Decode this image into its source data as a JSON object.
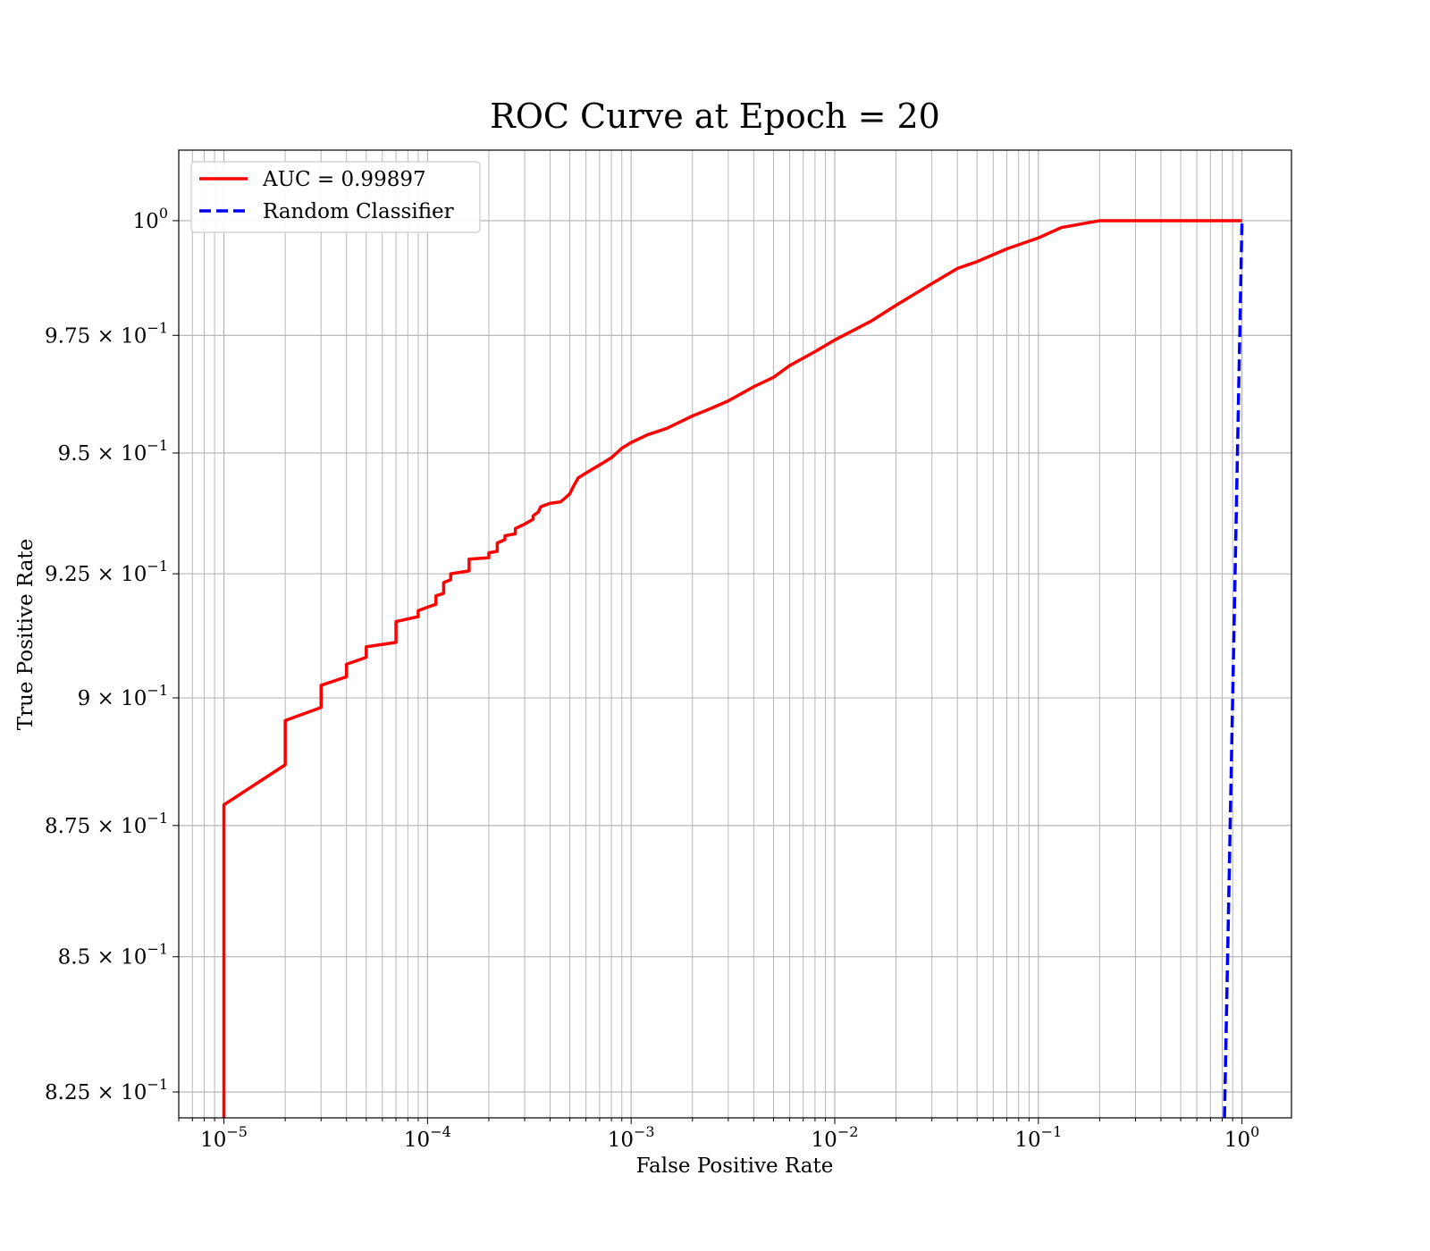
{
  "chart_data": {
    "type": "line",
    "title": "ROC Curve at Epoch = 20",
    "xlabel": "False Positive Rate",
    "ylabel": "True Positive Rate",
    "xscale": "log",
    "yscale": "log",
    "xlim": [
      6e-06,
      1.75
    ],
    "ylim": [
      0.8203,
      1.0157
    ],
    "grid": true,
    "grid_minor": true,
    "legend_position": "upper-left",
    "x_ticks": [
      {
        "value": 1e-05,
        "mant": "10",
        "exp": "−5"
      },
      {
        "value": 0.0001,
        "mant": "10",
        "exp": "−4"
      },
      {
        "value": 0.001,
        "mant": "10",
        "exp": "−3"
      },
      {
        "value": 0.01,
        "mant": "10",
        "exp": "−2"
      },
      {
        "value": 0.1,
        "mant": "10",
        "exp": "−1"
      },
      {
        "value": 1,
        "mant": "10",
        "exp": "0"
      }
    ],
    "y_ticks": [
      {
        "value": 1.0,
        "mant": "10",
        "exp": "0"
      },
      {
        "value": 0.975,
        "mant": "9.75 × 10",
        "exp": "−1"
      },
      {
        "value": 0.95,
        "mant": "9.5 × 10",
        "exp": "−1"
      },
      {
        "value": 0.925,
        "mant": "9.25 × 10",
        "exp": "−1"
      },
      {
        "value": 0.9,
        "mant": "9 × 10",
        "exp": "−1"
      },
      {
        "value": 0.875,
        "mant": "8.75 × 10",
        "exp": "−1"
      },
      {
        "value": 0.85,
        "mant": "8.5 × 10",
        "exp": "−1"
      },
      {
        "value": 0.825,
        "mant": "8.25 × 10",
        "exp": "−1"
      }
    ],
    "series": [
      {
        "name": "AUC = 0.99897",
        "color": "#ff0000",
        "style": "solid",
        "points": [
          [
            1e-05,
            0.82
          ],
          [
            1e-05,
            0.828
          ],
          [
            1e-05,
            0.879
          ],
          [
            2e-05,
            0.8868
          ],
          [
            2e-05,
            0.8955
          ],
          [
            3e-05,
            0.8981
          ],
          [
            3e-05,
            0.9025
          ],
          [
            4e-05,
            0.9042
          ],
          [
            4e-05,
            0.9067
          ],
          [
            5e-05,
            0.9081
          ],
          [
            5e-05,
            0.9102
          ],
          [
            7e-05,
            0.9111
          ],
          [
            7e-05,
            0.9153
          ],
          [
            9e-05,
            0.9163
          ],
          [
            9e-05,
            0.9175
          ],
          [
            0.0001,
            0.9182
          ],
          [
            0.00011,
            0.9188
          ],
          [
            0.00011,
            0.9205
          ],
          [
            0.00012,
            0.921
          ],
          [
            0.00012,
            0.9232
          ],
          [
            0.00013,
            0.9238
          ],
          [
            0.00013,
            0.925
          ],
          [
            0.00016,
            0.9256
          ],
          [
            0.00016,
            0.928
          ],
          [
            0.0002,
            0.9283
          ],
          [
            0.0002,
            0.9293
          ],
          [
            0.00022,
            0.9296
          ],
          [
            0.00022,
            0.9313
          ],
          [
            0.00024,
            0.932
          ],
          [
            0.00024,
            0.9328
          ],
          [
            0.00027,
            0.9332
          ],
          [
            0.00027,
            0.9343
          ],
          [
            0.0003,
            0.9352
          ],
          [
            0.00033,
            0.9362
          ],
          [
            0.00033,
            0.9369
          ],
          [
            0.00035,
            0.9377
          ],
          [
            0.00036,
            0.9388
          ],
          [
            0.0004,
            0.9395
          ],
          [
            0.00045,
            0.9398
          ],
          [
            0.00048,
            0.9408
          ],
          [
            0.0005,
            0.9415
          ],
          [
            0.00052,
            0.943
          ],
          [
            0.00055,
            0.9448
          ],
          [
            0.0006,
            0.9458
          ],
          [
            0.0007,
            0.9475
          ],
          [
            0.0008,
            0.949
          ],
          [
            0.0009,
            0.951
          ],
          [
            0.001,
            0.9522
          ],
          [
            0.0012,
            0.9538
          ],
          [
            0.0015,
            0.9552
          ],
          [
            0.002,
            0.9578
          ],
          [
            0.0025,
            0.9595
          ],
          [
            0.003,
            0.961
          ],
          [
            0.004,
            0.964
          ],
          [
            0.005,
            0.966
          ],
          [
            0.006,
            0.9685
          ],
          [
            0.008,
            0.9715
          ],
          [
            0.01,
            0.974
          ],
          [
            0.015,
            0.978
          ],
          [
            0.02,
            0.9815
          ],
          [
            0.03,
            0.9862
          ],
          [
            0.04,
            0.9895
          ],
          [
            0.05,
            0.991
          ],
          [
            0.07,
            0.9938
          ],
          [
            0.1,
            0.9962
          ],
          [
            0.13,
            0.9985
          ],
          [
            0.2,
            1.0
          ],
          [
            1.0,
            1.0
          ]
        ]
      },
      {
        "name": "Random Classifier",
        "color": "#0000ff",
        "style": "dashed",
        "points": [
          [
            0.8203,
            0.8203
          ],
          [
            0.9,
            0.9
          ],
          [
            1.0,
            1.0
          ]
        ]
      }
    ]
  }
}
